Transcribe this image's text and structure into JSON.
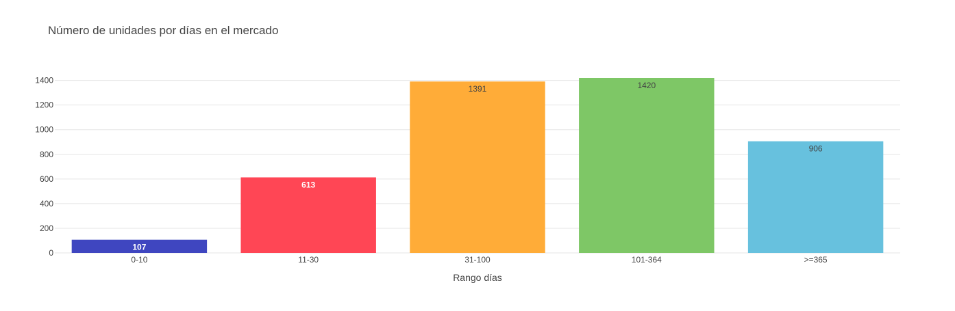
{
  "chart_data": {
    "type": "bar",
    "title": "Número de unidades por días en el mercado",
    "xlabel": "Rango días",
    "ylabel": "",
    "categories": [
      "0-10",
      "11-30",
      "31-100",
      "101-364",
      ">=365"
    ],
    "values": [
      107,
      613,
      1391,
      1420,
      906
    ],
    "value_labels": [
      "107",
      "613",
      "1391",
      "1420",
      "906"
    ],
    "colors": [
      "#3f46c0",
      "#ff4655",
      "#ffac38",
      "#7ec766",
      "#67c1de"
    ],
    "label_colors": [
      "#ffffff",
      "#ffffff",
      "#444444",
      "#444444",
      "#444444"
    ],
    "label_weights": [
      "bold",
      "bold",
      "normal",
      "normal",
      "normal"
    ],
    "yticks": [
      0,
      200,
      400,
      600,
      800,
      1000,
      1200,
      1400
    ],
    "ytick_labels": [
      "0",
      "200",
      "400",
      "600",
      "800",
      "1000",
      "1200",
      "1400"
    ],
    "ylim": [
      0,
      1420
    ],
    "grid": true,
    "legend": "none"
  }
}
